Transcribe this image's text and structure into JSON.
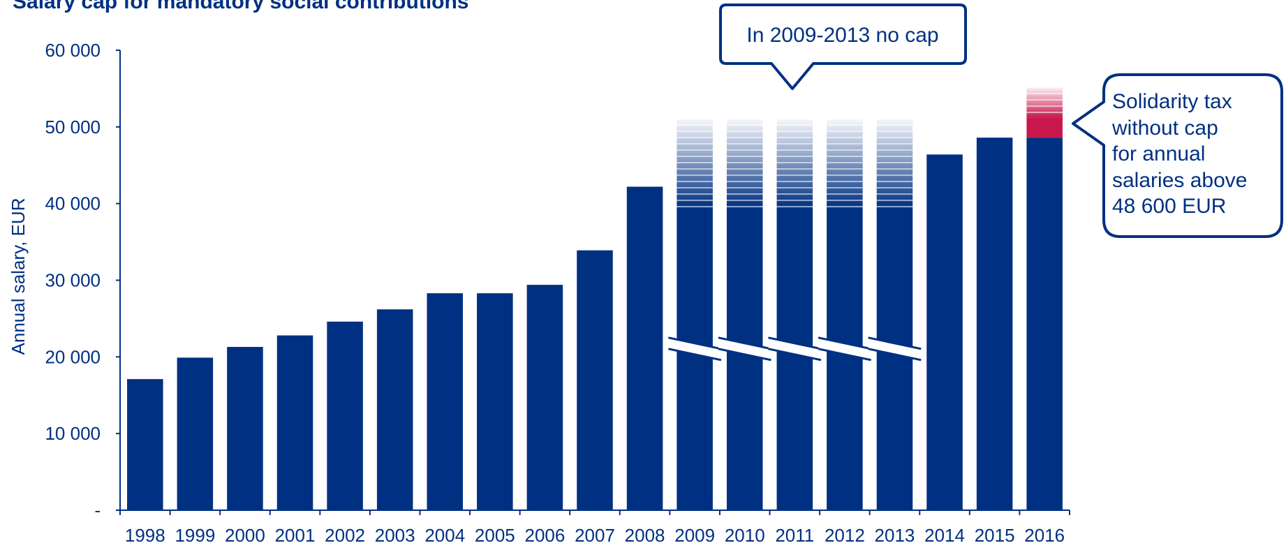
{
  "chart_data": {
    "type": "bar",
    "title": "Salary cap for mandatory social contributions",
    "ylabel": "Annual salary, EUR",
    "ylim": [
      0,
      60000
    ],
    "yticks": [
      {
        "value": 0,
        "label": "-"
      },
      {
        "value": 10000,
        "label": "10 000"
      },
      {
        "value": 20000,
        "label": "20 000"
      },
      {
        "value": 30000,
        "label": "30 000"
      },
      {
        "value": 40000,
        "label": "40 000"
      },
      {
        "value": 50000,
        "label": "50 000"
      },
      {
        "value": 60000,
        "label": "60 000"
      }
    ],
    "categories": [
      "1998",
      "1999",
      "2000",
      "2001",
      "2002",
      "2003",
      "2004",
      "2005",
      "2006",
      "2007",
      "2008",
      "2009",
      "2010",
      "2011",
      "2012",
      "2013",
      "2014",
      "2015",
      "2016"
    ],
    "values": [
      17100,
      19900,
      21300,
      22800,
      24600,
      26200,
      28300,
      28300,
      29400,
      33900,
      42200,
      null,
      null,
      null,
      null,
      null,
      46400,
      48600,
      48600
    ],
    "no_cap_years": [
      "2009",
      "2010",
      "2011",
      "2012",
      "2013"
    ],
    "solidarity_tax_years": [
      "2016"
    ],
    "colors": {
      "bar": "#003082",
      "solidarity": "#c8174d",
      "text": "#003082"
    },
    "grid": false,
    "annotations": {
      "no_cap": "In 2009-2013 no cap",
      "solidarity": [
        "Solidarity tax",
        "without cap",
        "for annual",
        "salaries above",
        "48 600 EUR"
      ]
    }
  }
}
